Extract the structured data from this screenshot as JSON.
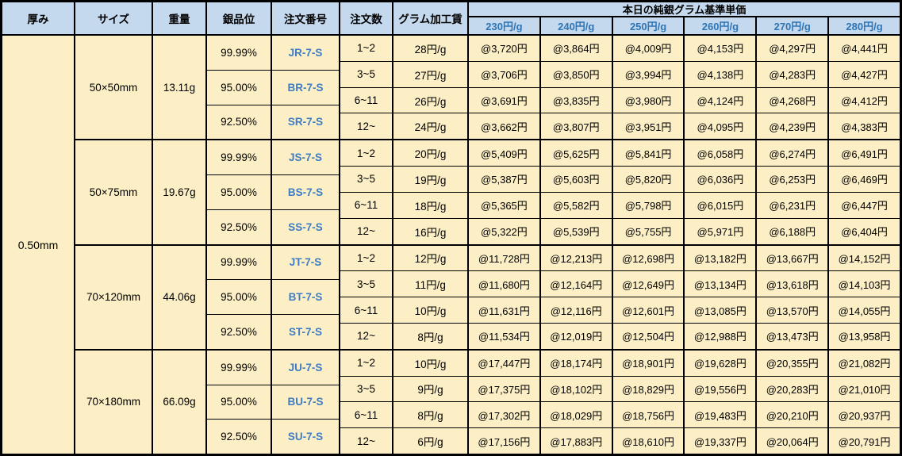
{
  "table": {
    "title": "本日の純銀グラム基準単価",
    "columns": {
      "thickness": "厚み",
      "size": "サイズ",
      "weight": "重量",
      "purity": "銀品位",
      "order_no": "注文番号",
      "order_qty": "注文数",
      "gram_fee": "グラム加工賃"
    },
    "price_tiers": [
      "230円/g",
      "240円/g",
      "250円/g",
      "260円/g",
      "270円/g",
      "280円/g"
    ],
    "thickness": "0.50mm",
    "colors": {
      "header_bg": "#C5D9EE",
      "body_bg": "#FCEFC6",
      "tier_text": "#2E75B6",
      "link_text": "#3E7CC6",
      "border": "#000000"
    },
    "blocks": [
      {
        "size": "50×50mm",
        "weight": "13.11g",
        "purities": [
          {
            "purity": "99.99%",
            "order_no": "JR-7-S"
          },
          {
            "purity": "95.00%",
            "order_no": "BR-7-S"
          },
          {
            "purity": "92.50%",
            "order_no": "SR-7-S"
          }
        ],
        "rows": [
          {
            "qty": "1~2",
            "fee": "28円/g",
            "prices": [
              "@3,720円",
              "@3,864円",
              "@4,009円",
              "@4,153円",
              "@4,297円",
              "@4,441円"
            ]
          },
          {
            "qty": "3~5",
            "fee": "27円/g",
            "prices": [
              "@3,706円",
              "@3,850円",
              "@3,994円",
              "@4,138円",
              "@4,283円",
              "@4,427円"
            ]
          },
          {
            "qty": "6~11",
            "fee": "26円/g",
            "prices": [
              "@3,691円",
              "@3,835円",
              "@3,980円",
              "@4,124円",
              "@4,268円",
              "@4,412円"
            ]
          },
          {
            "qty": "12~",
            "fee": "24円/g",
            "prices": [
              "@3,662円",
              "@3,807円",
              "@3,951円",
              "@4,095円",
              "@4,239円",
              "@4,383円"
            ]
          }
        ]
      },
      {
        "size": "50×75mm",
        "weight": "19.67g",
        "purities": [
          {
            "purity": "99.99%",
            "order_no": "JS-7-S"
          },
          {
            "purity": "95.00%",
            "order_no": "BS-7-S"
          },
          {
            "purity": "92.50%",
            "order_no": "SS-7-S"
          }
        ],
        "rows": [
          {
            "qty": "1~2",
            "fee": "20円/g",
            "prices": [
              "@5,409円",
              "@5,625円",
              "@5,841円",
              "@6,058円",
              "@6,274円",
              "@6,491円"
            ]
          },
          {
            "qty": "3~5",
            "fee": "19円/g",
            "prices": [
              "@5,387円",
              "@5,603円",
              "@5,820円",
              "@6,036円",
              "@6,253円",
              "@6,469円"
            ]
          },
          {
            "qty": "6~11",
            "fee": "18円/g",
            "prices": [
              "@5,365円",
              "@5,582円",
              "@5,798円",
              "@6,015円",
              "@6,231円",
              "@6,447円"
            ]
          },
          {
            "qty": "12~",
            "fee": "16円/g",
            "prices": [
              "@5,322円",
              "@5,539円",
              "@5,755円",
              "@5,971円",
              "@6,188円",
              "@6,404円"
            ]
          }
        ]
      },
      {
        "size": "70×120mm",
        "weight": "44.06g",
        "purities": [
          {
            "purity": "99.99%",
            "order_no": "JT-7-S"
          },
          {
            "purity": "95.00%",
            "order_no": "BT-7-S"
          },
          {
            "purity": "92.50%",
            "order_no": "ST-7-S"
          }
        ],
        "rows": [
          {
            "qty": "1~2",
            "fee": "12円/g",
            "prices": [
              "@11,728円",
              "@12,213円",
              "@12,698円",
              "@13,182円",
              "@13,667円",
              "@14,152円"
            ]
          },
          {
            "qty": "3~5",
            "fee": "11円/g",
            "prices": [
              "@11,680円",
              "@12,164円",
              "@12,649円",
              "@13,134円",
              "@13,618円",
              "@14,103円"
            ]
          },
          {
            "qty": "6~11",
            "fee": "10円/g",
            "prices": [
              "@11,631円",
              "@12,116円",
              "@12,601円",
              "@13,085円",
              "@13,570円",
              "@14,055円"
            ]
          },
          {
            "qty": "12~",
            "fee": "8円/g",
            "prices": [
              "@11,534円",
              "@12,019円",
              "@12,504円",
              "@12,988円",
              "@13,473円",
              "@13,958円"
            ]
          }
        ]
      },
      {
        "size": "70×180mm",
        "weight": "66.09g",
        "purities": [
          {
            "purity": "99.99%",
            "order_no": "JU-7-S"
          },
          {
            "purity": "95.00%",
            "order_no": "BU-7-S"
          },
          {
            "purity": "92.50%",
            "order_no": "SU-7-S"
          }
        ],
        "rows": [
          {
            "qty": "1~2",
            "fee": "10円/g",
            "prices": [
              "@17,447円",
              "@18,174円",
              "@18,901円",
              "@19,628円",
              "@20,355円",
              "@21,082円"
            ]
          },
          {
            "qty": "3~5",
            "fee": "9円/g",
            "prices": [
              "@17,375円",
              "@18,102円",
              "@18,829円",
              "@19,556円",
              "@20,283円",
              "@21,010円"
            ]
          },
          {
            "qty": "6~11",
            "fee": "8円/g",
            "prices": [
              "@17,302円",
              "@18,029円",
              "@18,756円",
              "@19,483円",
              "@20,210円",
              "@20,937円"
            ]
          },
          {
            "qty": "12~",
            "fee": "6円/g",
            "prices": [
              "@17,156円",
              "@17,883円",
              "@18,610円",
              "@19,337円",
              "@20,064円",
              "@20,791円"
            ]
          }
        ]
      }
    ]
  }
}
